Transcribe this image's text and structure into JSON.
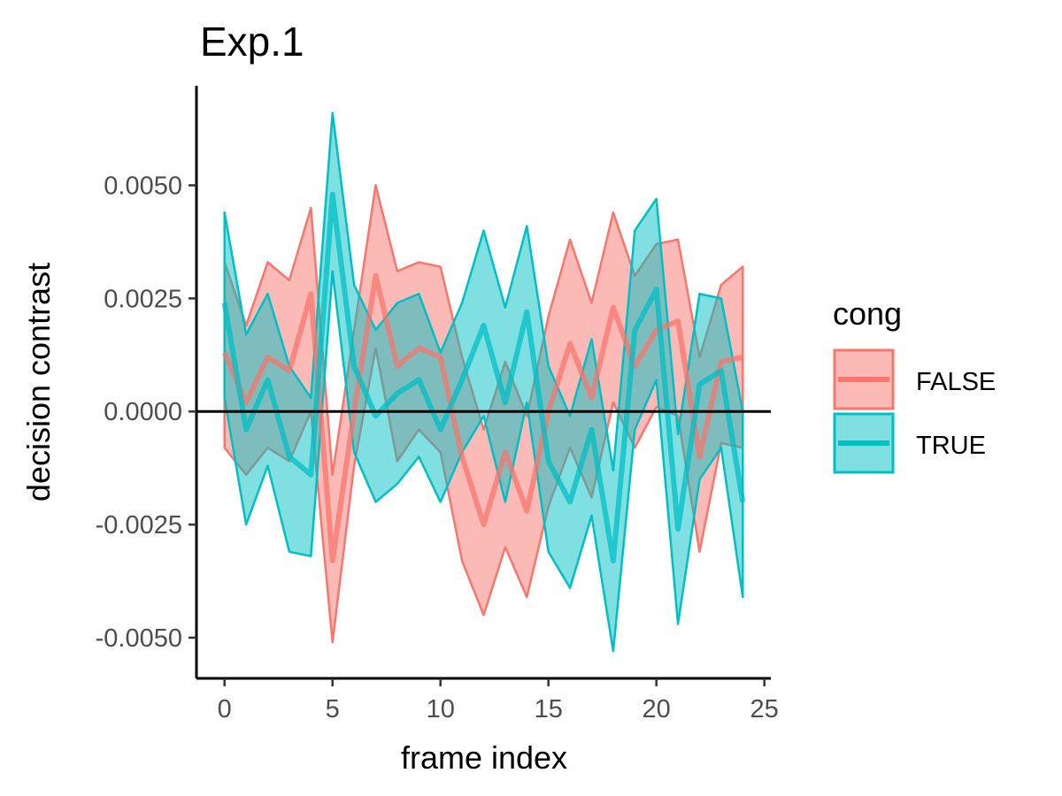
{
  "chart_data": {
    "type": "line",
    "title": "Exp.1",
    "xlabel": "frame index",
    "ylabel": "decision contrast",
    "xlim": [
      -1.3,
      25.3
    ],
    "ylim": [
      -0.0059,
      0.0072
    ],
    "xticks": [
      0,
      5,
      10,
      15,
      20,
      25
    ],
    "xtick_labels": [
      "0",
      "5",
      "10",
      "15",
      "20",
      "25"
    ],
    "yticks": [
      -0.005,
      -0.0025,
      0,
      0.0025,
      0.005
    ],
    "ytick_labels": [
      "-0.0050",
      "-0.0025",
      "0.0000",
      "0.0025",
      "0.0050"
    ],
    "reference_line": 0,
    "grid": false,
    "legend": {
      "title": "cong",
      "position": "right"
    },
    "x": [
      0,
      1,
      2,
      3,
      4,
      5,
      6,
      7,
      8,
      9,
      10,
      11,
      12,
      13,
      14,
      15,
      16,
      17,
      18,
      19,
      20,
      21,
      22,
      23,
      24
    ],
    "series": [
      {
        "name": "FALSE",
        "color": "#F8766D",
        "mean": [
          0.0013,
          0.0002,
          0.0012,
          0.0009,
          0.0026,
          -0.0033,
          0.0,
          0.003,
          0.001,
          0.0014,
          0.0012,
          -0.001,
          -0.0025,
          -0.0009,
          -0.0022,
          0.0,
          0.0015,
          0.0003,
          0.0023,
          0.001,
          0.0018,
          0.002,
          -0.001,
          0.0011,
          0.0012
        ],
        "lower": [
          -0.0008,
          -0.0014,
          -0.0008,
          -0.0011,
          0.0,
          -0.0051,
          -0.0012,
          0.0014,
          -0.0011,
          -0.0004,
          -0.0009,
          -0.0033,
          -0.0045,
          -0.003,
          -0.0041,
          -0.0021,
          -0.0008,
          -0.0019,
          0.0002,
          -0.0008,
          0.0001,
          -0.0001,
          -0.0031,
          -0.0007,
          -0.0008
        ],
        "upper": [
          0.0033,
          0.0019,
          0.0033,
          0.0029,
          0.0045,
          -0.0014,
          0.0018,
          0.005,
          0.0031,
          0.0033,
          0.0032,
          0.0012,
          -0.0004,
          0.0011,
          -0.0001,
          0.0021,
          0.0038,
          0.0024,
          0.0044,
          0.003,
          0.0037,
          0.0038,
          0.0012,
          0.0028,
          0.0032
        ]
      },
      {
        "name": "TRUE",
        "color": "#00BFC4",
        "mean": [
          0.0024,
          -0.0004,
          0.0007,
          -0.001,
          -0.0014,
          0.0048,
          0.001,
          -0.0001,
          0.0004,
          0.0007,
          -0.0004,
          0.0007,
          0.0019,
          0.0002,
          0.0022,
          -0.0011,
          -0.002,
          -0.0004,
          -0.0033,
          0.0018,
          0.0027,
          -0.0026,
          0.0006,
          0.0009,
          -0.002
        ],
        "lower": [
          0.0003,
          -0.0025,
          -0.0012,
          -0.0031,
          -0.0032,
          0.0031,
          -0.0009,
          -0.002,
          -0.0016,
          -0.001,
          -0.002,
          -0.0009,
          -0.0001,
          -0.002,
          0.0002,
          -0.0031,
          -0.0039,
          -0.0023,
          -0.0053,
          -0.0004,
          0.0007,
          -0.0047,
          -0.0015,
          -0.0008,
          -0.0041
        ],
        "upper": [
          0.0044,
          0.0017,
          0.0026,
          0.001,
          0.0003,
          0.0066,
          0.0028,
          0.0018,
          0.0024,
          0.0026,
          0.0013,
          0.0024,
          0.004,
          0.0023,
          0.0041,
          0.001,
          -0.0001,
          0.0016,
          -0.0013,
          0.004,
          0.0047,
          -0.0005,
          0.0026,
          0.0025,
          0.0
        ]
      }
    ]
  }
}
